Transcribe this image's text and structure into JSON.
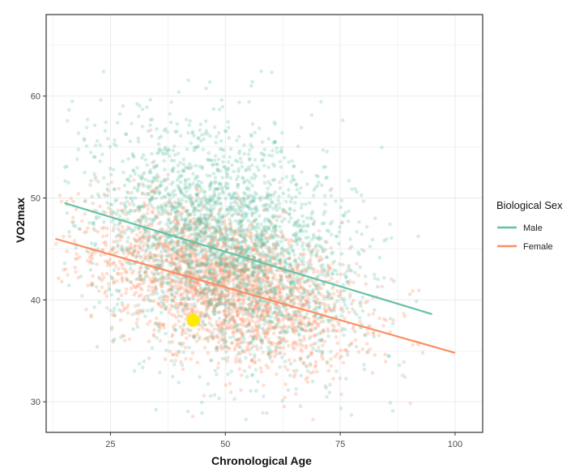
{
  "chart_data": {
    "type": "scatter",
    "xlabel": "Chronological Age",
    "ylabel": "VO2max",
    "xlim": [
      11,
      106
    ],
    "ylim": [
      27,
      68
    ],
    "x_ticks": [
      25,
      50,
      75,
      100
    ],
    "y_ticks": [
      30,
      40,
      50,
      60
    ],
    "grid": true,
    "legend": {
      "title": "Biological Sex",
      "placement": "right",
      "entries": [
        "Male",
        "Female"
      ]
    },
    "series": [
      {
        "name": "Male",
        "color": "#66c2a5",
        "center": [
          50,
          46.5
        ],
        "spread": [
          14,
          5.5
        ],
        "x_range": [
          15,
          96
        ],
        "regression_line": {
          "x": [
            15,
            95
          ],
          "y": [
            49.5,
            38.6
          ]
        }
      },
      {
        "name": "Female",
        "color": "#fc8d62",
        "center": [
          50,
          40
        ],
        "spread": [
          14,
          3.6
        ],
        "x_range": [
          13,
          100
        ],
        "regression_line": {
          "x": [
            13,
            100
          ],
          "y": [
            46.0,
            34.8
          ]
        }
      }
    ],
    "highlight_point": {
      "x": 43,
      "y": 38,
      "color": "#ffeb00"
    }
  }
}
